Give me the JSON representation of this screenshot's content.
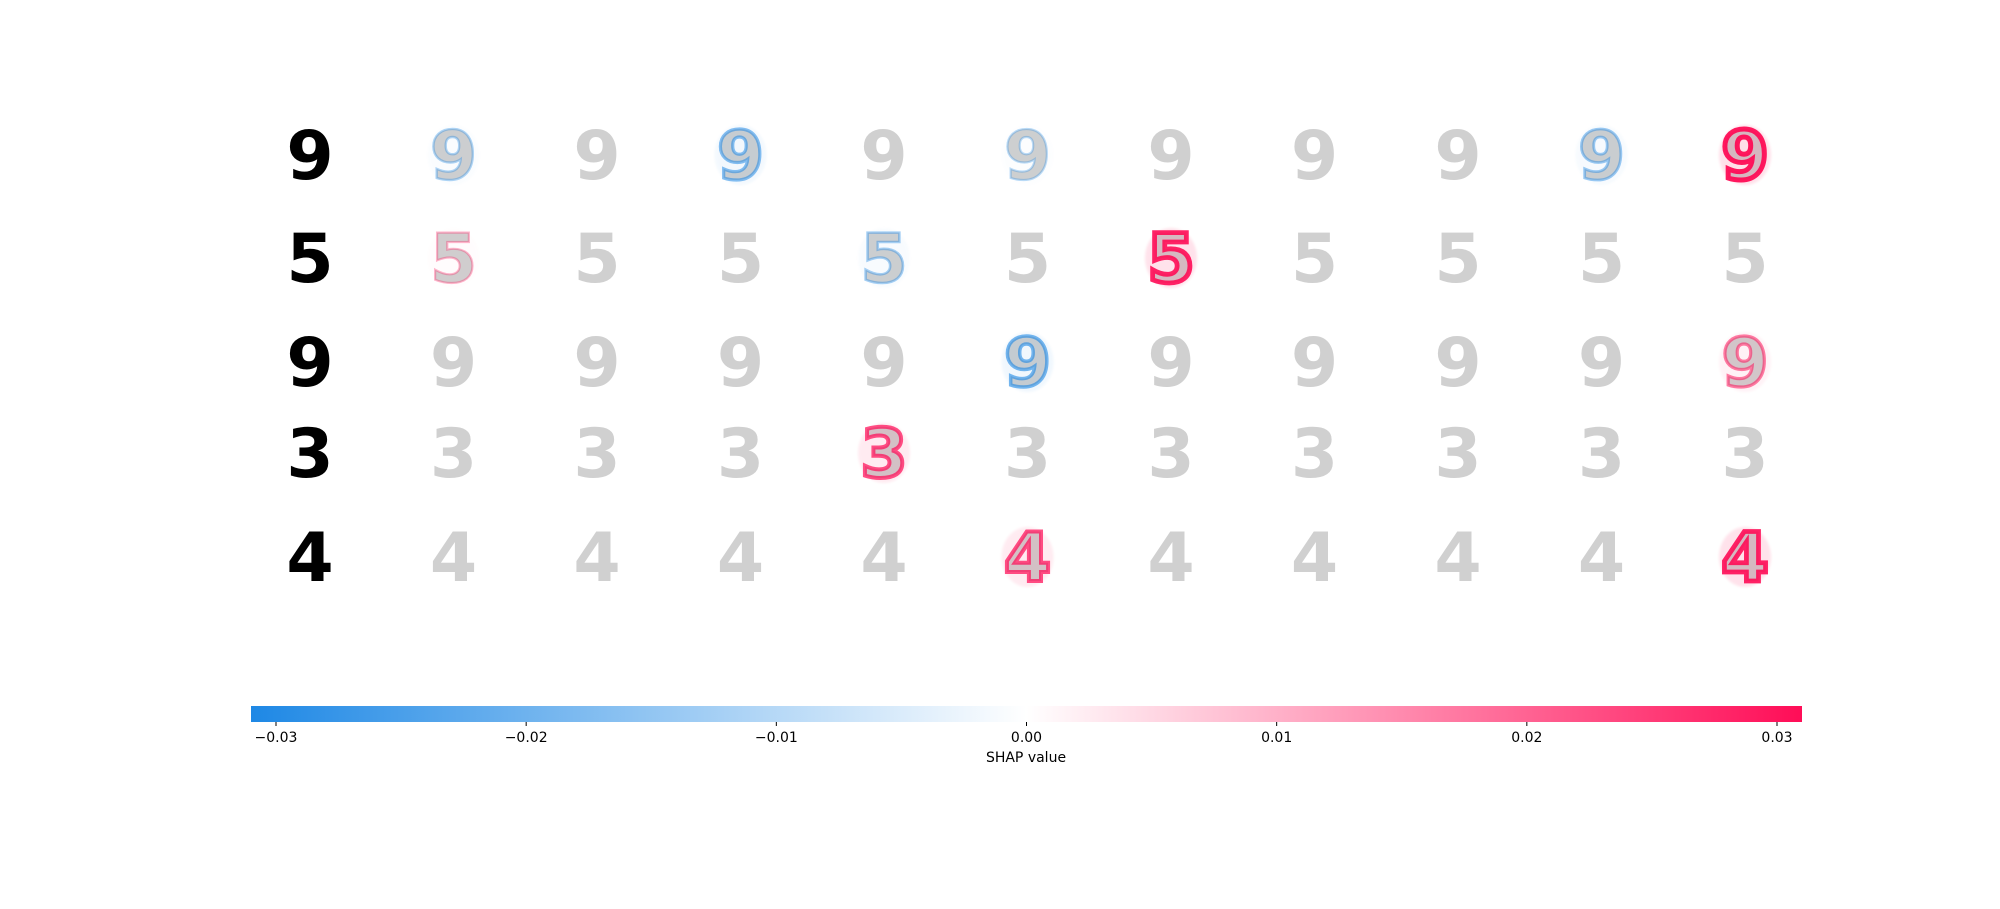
{
  "chart_data": {
    "type": "heatmap",
    "description_rows": [
      "9",
      "5",
      "9",
      "3",
      "4"
    ],
    "n_output_columns": 10,
    "colorbar": {
      "label": "SHAP value",
      "min": -0.03,
      "max": 0.03,
      "ticks": [
        -0.03,
        -0.02,
        -0.01,
        0.0,
        0.01,
        0.02,
        0.03
      ],
      "tick_labels": [
        "−0.03",
        "−0.02",
        "−0.01",
        "0.00",
        "0.01",
        "0.02",
        "0.03"
      ],
      "negative_color": "#1e88e5",
      "positive_color": "#ff0d57",
      "neutral_color": "#ffffff"
    },
    "input_images": [
      "9",
      "5",
      "9",
      "3",
      "4"
    ],
    "attribution_strength": [
      [
        -0.004,
        0.0,
        -0.012,
        0.0,
        -0.002,
        0.0,
        0.0,
        0.0,
        -0.008,
        0.03
      ],
      [
        0.002,
        0.0,
        0.0,
        -0.006,
        0.0,
        0.028,
        0.0,
        0.0,
        0.0,
        0.0
      ],
      [
        0.0,
        0.0,
        0.0,
        0.0,
        -0.015,
        0.0,
        0.0,
        0.0,
        0.0,
        0.012
      ],
      [
        0.0,
        0.0,
        0.0,
        0.02,
        0.0,
        0.0,
        0.0,
        0.0,
        0.0,
        0.0
      ],
      [
        0.0,
        0.0,
        0.0,
        0.0,
        0.02,
        0.0,
        0.0,
        0.0,
        0.0,
        0.028
      ]
    ]
  },
  "colors": {
    "input_digit": "#000000",
    "ghost_digit": "#d0d0d0",
    "negative": "#1e88e5",
    "positive": "#ff0d57"
  }
}
